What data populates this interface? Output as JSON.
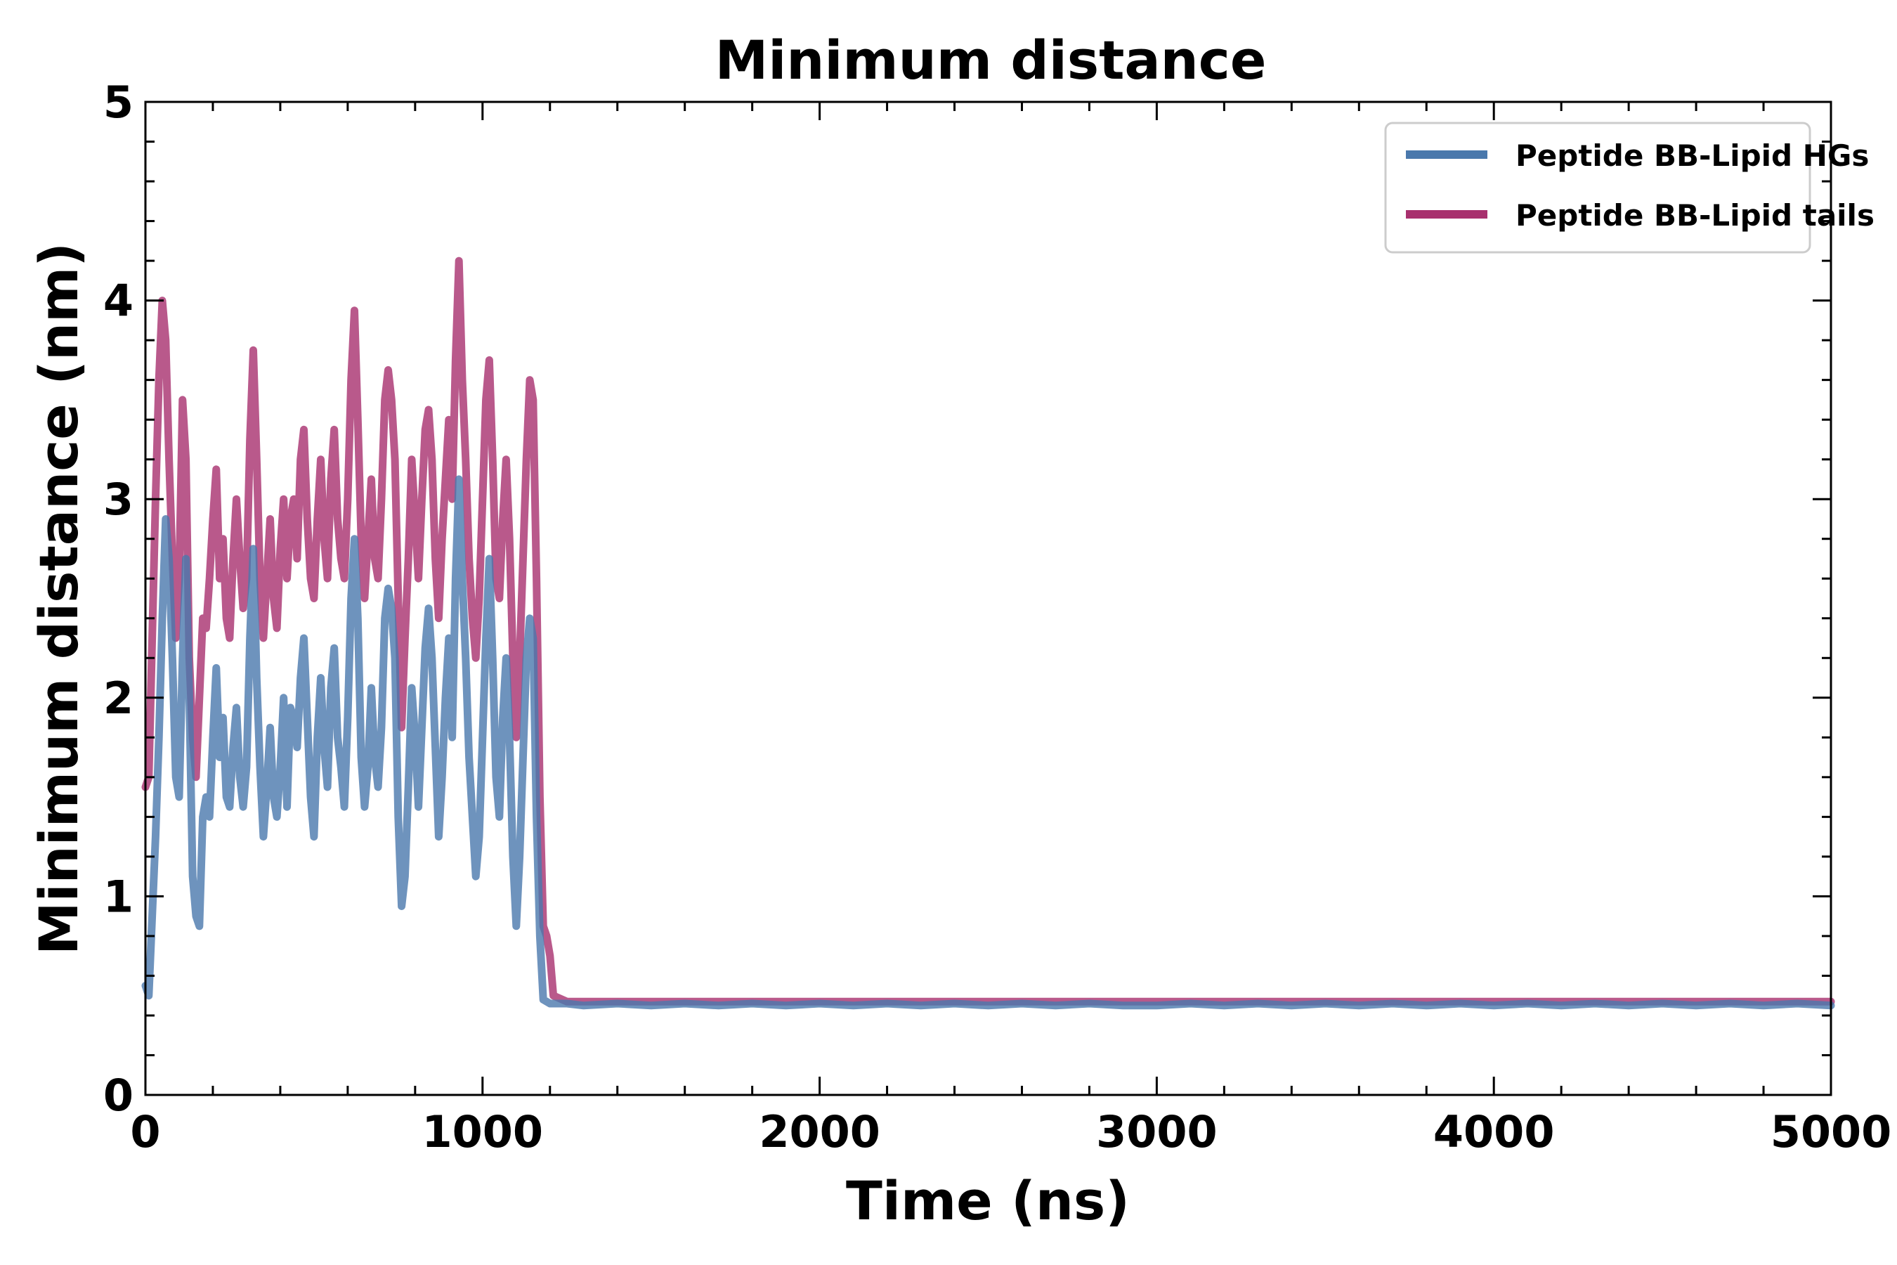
{
  "chart_data": {
    "type": "line",
    "title": "Minimum distance",
    "xlabel": "Time (ns)",
    "ylabel": "Minimum distance (nm)",
    "xlim": [
      0,
      5000
    ],
    "ylim": [
      0,
      5
    ],
    "xticks": [
      0,
      1000,
      2000,
      3000,
      4000,
      5000
    ],
    "yticks": [
      0,
      1,
      2,
      3,
      4,
      5
    ],
    "x_minor_step": 200,
    "y_minor_step": 0.2,
    "legend_position": "top-right",
    "series": [
      {
        "name": "Peptide BB-Lipid HGs",
        "color": "#4a78ac",
        "points": [
          [
            0,
            0.55
          ],
          [
            10,
            0.5
          ],
          [
            20,
            0.9
          ],
          [
            30,
            1.3
          ],
          [
            40,
            1.8
          ],
          [
            50,
            2.4
          ],
          [
            60,
            2.9
          ],
          [
            70,
            2.7
          ],
          [
            80,
            2.2
          ],
          [
            90,
            1.6
          ],
          [
            100,
            1.5
          ],
          [
            110,
            2.2
          ],
          [
            120,
            2.7
          ],
          [
            130,
            2.0
          ],
          [
            140,
            1.1
          ],
          [
            150,
            0.9
          ],
          [
            160,
            0.85
          ],
          [
            170,
            1.4
          ],
          [
            180,
            1.5
          ],
          [
            190,
            1.4
          ],
          [
            200,
            1.8
          ],
          [
            210,
            2.15
          ],
          [
            220,
            1.7
          ],
          [
            230,
            1.9
          ],
          [
            240,
            1.5
          ],
          [
            250,
            1.45
          ],
          [
            260,
            1.75
          ],
          [
            270,
            1.95
          ],
          [
            280,
            1.6
          ],
          [
            290,
            1.45
          ],
          [
            300,
            1.65
          ],
          [
            310,
            2.3
          ],
          [
            320,
            2.75
          ],
          [
            330,
            2.1
          ],
          [
            340,
            1.65
          ],
          [
            350,
            1.3
          ],
          [
            360,
            1.55
          ],
          [
            370,
            1.85
          ],
          [
            380,
            1.5
          ],
          [
            390,
            1.4
          ],
          [
            400,
            1.65
          ],
          [
            410,
            2.0
          ],
          [
            420,
            1.45
          ],
          [
            430,
            1.95
          ],
          [
            440,
            1.9
          ],
          [
            450,
            1.75
          ],
          [
            460,
            2.1
          ],
          [
            470,
            2.3
          ],
          [
            480,
            1.9
          ],
          [
            490,
            1.5
          ],
          [
            500,
            1.3
          ],
          [
            510,
            1.8
          ],
          [
            520,
            2.1
          ],
          [
            530,
            1.75
          ],
          [
            540,
            1.55
          ],
          [
            550,
            2.05
          ],
          [
            560,
            2.25
          ],
          [
            570,
            1.8
          ],
          [
            580,
            1.65
          ],
          [
            590,
            1.45
          ],
          [
            600,
            1.9
          ],
          [
            610,
            2.5
          ],
          [
            620,
            2.8
          ],
          [
            630,
            2.4
          ],
          [
            640,
            1.7
          ],
          [
            650,
            1.45
          ],
          [
            660,
            1.65
          ],
          [
            670,
            2.05
          ],
          [
            680,
            1.7
          ],
          [
            690,
            1.55
          ],
          [
            700,
            1.85
          ],
          [
            710,
            2.4
          ],
          [
            720,
            2.55
          ],
          [
            730,
            2.45
          ],
          [
            740,
            2.2
          ],
          [
            750,
            1.4
          ],
          [
            760,
            0.95
          ],
          [
            770,
            1.1
          ],
          [
            780,
            1.55
          ],
          [
            790,
            2.05
          ],
          [
            800,
            1.8
          ],
          [
            810,
            1.45
          ],
          [
            820,
            1.85
          ],
          [
            830,
            2.25
          ],
          [
            840,
            2.45
          ],
          [
            850,
            2.2
          ],
          [
            860,
            1.75
          ],
          [
            870,
            1.3
          ],
          [
            880,
            1.6
          ],
          [
            890,
            2.0
          ],
          [
            900,
            2.3
          ],
          [
            910,
            1.8
          ],
          [
            920,
            2.6
          ],
          [
            930,
            3.1
          ],
          [
            940,
            2.6
          ],
          [
            950,
            2.2
          ],
          [
            960,
            1.7
          ],
          [
            970,
            1.4
          ],
          [
            980,
            1.1
          ],
          [
            990,
            1.3
          ],
          [
            1000,
            1.8
          ],
          [
            1010,
            2.3
          ],
          [
            1020,
            2.7
          ],
          [
            1030,
            2.2
          ],
          [
            1040,
            1.6
          ],
          [
            1050,
            1.4
          ],
          [
            1060,
            1.9
          ],
          [
            1070,
            2.2
          ],
          [
            1080,
            1.8
          ],
          [
            1090,
            1.2
          ],
          [
            1100,
            0.85
          ],
          [
            1110,
            1.2
          ],
          [
            1120,
            1.7
          ],
          [
            1130,
            2.2
          ],
          [
            1140,
            2.4
          ],
          [
            1150,
            2.3
          ],
          [
            1160,
            1.4
          ],
          [
            1170,
            0.8
          ],
          [
            1180,
            0.48
          ],
          [
            1200,
            0.46
          ],
          [
            1250,
            0.46
          ],
          [
            1300,
            0.45
          ],
          [
            1400,
            0.46
          ],
          [
            1500,
            0.45
          ],
          [
            1600,
            0.46
          ],
          [
            1700,
            0.45
          ],
          [
            1800,
            0.46
          ],
          [
            1900,
            0.45
          ],
          [
            2000,
            0.46
          ],
          [
            2100,
            0.45
          ],
          [
            2200,
            0.46
          ],
          [
            2300,
            0.45
          ],
          [
            2400,
            0.46
          ],
          [
            2500,
            0.45
          ],
          [
            2600,
            0.46
          ],
          [
            2700,
            0.45
          ],
          [
            2800,
            0.46
          ],
          [
            2900,
            0.45
          ],
          [
            3000,
            0.45
          ],
          [
            3100,
            0.46
          ],
          [
            3200,
            0.45
          ],
          [
            3300,
            0.46
          ],
          [
            3400,
            0.45
          ],
          [
            3500,
            0.46
          ],
          [
            3600,
            0.45
          ],
          [
            3700,
            0.46
          ],
          [
            3800,
            0.45
          ],
          [
            3900,
            0.46
          ],
          [
            4000,
            0.45
          ],
          [
            4100,
            0.46
          ],
          [
            4200,
            0.45
          ],
          [
            4300,
            0.46
          ],
          [
            4400,
            0.45
          ],
          [
            4500,
            0.46
          ],
          [
            4600,
            0.45
          ],
          [
            4700,
            0.46
          ],
          [
            4800,
            0.45
          ],
          [
            4900,
            0.46
          ],
          [
            5000,
            0.45
          ]
        ]
      },
      {
        "name": "Peptide BB-Lipid tails",
        "color": "#a8306e",
        "points": [
          [
            0,
            1.55
          ],
          [
            10,
            1.6
          ],
          [
            20,
            2.3
          ],
          [
            30,
            3.0
          ],
          [
            40,
            3.6
          ],
          [
            50,
            4.0
          ],
          [
            60,
            3.8
          ],
          [
            70,
            3.2
          ],
          [
            80,
            2.7
          ],
          [
            90,
            2.3
          ],
          [
            100,
            2.6
          ],
          [
            110,
            3.5
          ],
          [
            120,
            3.2
          ],
          [
            130,
            2.2
          ],
          [
            140,
            1.8
          ],
          [
            150,
            1.6
          ],
          [
            160,
            2.0
          ],
          [
            170,
            2.4
          ],
          [
            180,
            2.35
          ],
          [
            190,
            2.6
          ],
          [
            200,
            2.9
          ],
          [
            210,
            3.15
          ],
          [
            220,
            2.6
          ],
          [
            230,
            2.8
          ],
          [
            240,
            2.4
          ],
          [
            250,
            2.3
          ],
          [
            260,
            2.7
          ],
          [
            270,
            3.0
          ],
          [
            280,
            2.7
          ],
          [
            290,
            2.45
          ],
          [
            300,
            2.6
          ],
          [
            310,
            3.3
          ],
          [
            320,
            3.75
          ],
          [
            330,
            3.2
          ],
          [
            340,
            2.6
          ],
          [
            350,
            2.3
          ],
          [
            360,
            2.6
          ],
          [
            370,
            2.9
          ],
          [
            380,
            2.5
          ],
          [
            390,
            2.35
          ],
          [
            400,
            2.75
          ],
          [
            410,
            3.0
          ],
          [
            420,
            2.6
          ],
          [
            430,
            2.9
          ],
          [
            440,
            3.0
          ],
          [
            450,
            2.7
          ],
          [
            460,
            3.2
          ],
          [
            470,
            3.35
          ],
          [
            480,
            2.9
          ],
          [
            490,
            2.6
          ],
          [
            500,
            2.5
          ],
          [
            510,
            2.9
          ],
          [
            520,
            3.2
          ],
          [
            530,
            2.8
          ],
          [
            540,
            2.6
          ],
          [
            550,
            3.1
          ],
          [
            560,
            3.35
          ],
          [
            570,
            2.9
          ],
          [
            580,
            2.7
          ],
          [
            590,
            2.6
          ],
          [
            600,
            3.0
          ],
          [
            610,
            3.6
          ],
          [
            620,
            3.95
          ],
          [
            630,
            3.4
          ],
          [
            640,
            2.8
          ],
          [
            650,
            2.5
          ],
          [
            660,
            2.8
          ],
          [
            670,
            3.1
          ],
          [
            680,
            2.7
          ],
          [
            690,
            2.6
          ],
          [
            700,
            3.0
          ],
          [
            710,
            3.5
          ],
          [
            720,
            3.65
          ],
          [
            730,
            3.5
          ],
          [
            740,
            3.2
          ],
          [
            750,
            2.5
          ],
          [
            760,
            1.85
          ],
          [
            770,
            2.3
          ],
          [
            780,
            2.7
          ],
          [
            790,
            3.2
          ],
          [
            800,
            2.9
          ],
          [
            810,
            2.6
          ],
          [
            820,
            3.0
          ],
          [
            830,
            3.35
          ],
          [
            840,
            3.45
          ],
          [
            850,
            3.2
          ],
          [
            860,
            2.7
          ],
          [
            870,
            2.4
          ],
          [
            880,
            2.8
          ],
          [
            890,
            3.1
          ],
          [
            900,
            3.4
          ],
          [
            910,
            3.0
          ],
          [
            920,
            3.7
          ],
          [
            930,
            4.2
          ],
          [
            940,
            3.6
          ],
          [
            950,
            3.2
          ],
          [
            960,
            2.7
          ],
          [
            970,
            2.4
          ],
          [
            980,
            2.2
          ],
          [
            990,
            2.5
          ],
          [
            1000,
            3.0
          ],
          [
            1010,
            3.5
          ],
          [
            1020,
            3.7
          ],
          [
            1030,
            3.2
          ],
          [
            1040,
            2.6
          ],
          [
            1050,
            2.5
          ],
          [
            1060,
            2.9
          ],
          [
            1070,
            3.2
          ],
          [
            1080,
            2.8
          ],
          [
            1090,
            2.2
          ],
          [
            1100,
            1.8
          ],
          [
            1110,
            2.2
          ],
          [
            1120,
            2.7
          ],
          [
            1130,
            3.2
          ],
          [
            1140,
            3.6
          ],
          [
            1150,
            3.5
          ],
          [
            1160,
            2.6
          ],
          [
            1170,
            1.5
          ],
          [
            1180,
            0.85
          ],
          [
            1190,
            0.8
          ],
          [
            1200,
            0.7
          ],
          [
            1210,
            0.5
          ],
          [
            1250,
            0.47
          ],
          [
            1300,
            0.47
          ],
          [
            1400,
            0.47
          ],
          [
            1500,
            0.47
          ],
          [
            1600,
            0.47
          ],
          [
            1700,
            0.47
          ],
          [
            1800,
            0.47
          ],
          [
            1900,
            0.47
          ],
          [
            2000,
            0.47
          ],
          [
            2100,
            0.47
          ],
          [
            2200,
            0.47
          ],
          [
            2300,
            0.47
          ],
          [
            2400,
            0.47
          ],
          [
            2500,
            0.47
          ],
          [
            2600,
            0.47
          ],
          [
            2700,
            0.47
          ],
          [
            2800,
            0.47
          ],
          [
            2900,
            0.47
          ],
          [
            3000,
            0.47
          ],
          [
            3100,
            0.47
          ],
          [
            3200,
            0.47
          ],
          [
            3300,
            0.47
          ],
          [
            3400,
            0.47
          ],
          [
            3500,
            0.47
          ],
          [
            3600,
            0.47
          ],
          [
            3700,
            0.47
          ],
          [
            3800,
            0.47
          ],
          [
            3900,
            0.47
          ],
          [
            4000,
            0.47
          ],
          [
            4100,
            0.47
          ],
          [
            4200,
            0.47
          ],
          [
            4300,
            0.47
          ],
          [
            4400,
            0.47
          ],
          [
            4500,
            0.47
          ],
          [
            4600,
            0.47
          ],
          [
            4700,
            0.47
          ],
          [
            4800,
            0.47
          ],
          [
            4900,
            0.47
          ],
          [
            5000,
            0.47
          ]
        ]
      }
    ]
  }
}
